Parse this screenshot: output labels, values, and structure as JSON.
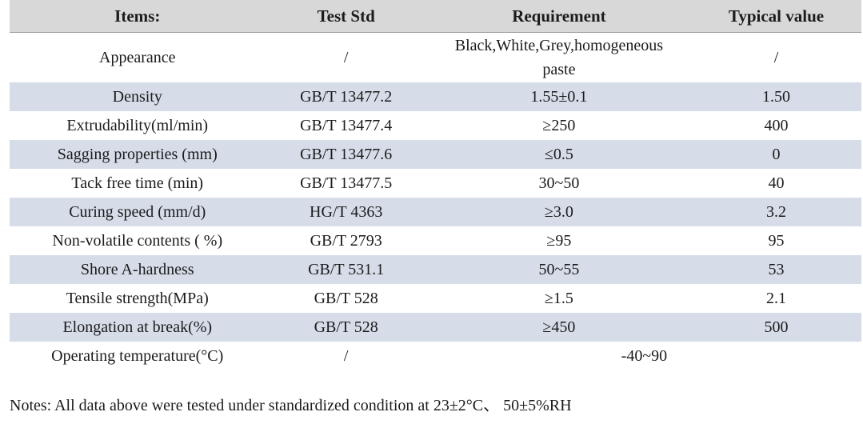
{
  "table": {
    "headers": [
      "Items:",
      "Test Std",
      "Requirement",
      "Typical value"
    ],
    "rows": [
      {
        "item": "Appearance",
        "test_std": "/",
        "requirement": "Black,White,Grey,homogeneous paste",
        "typical": "/"
      },
      {
        "item": "Density",
        "test_std": "GB/T 13477.2",
        "requirement": "1.55±0.1",
        "typical": "1.50"
      },
      {
        "item": "Extrudability(ml/min)",
        "test_std": "GB/T 13477.4",
        "requirement": "≥250",
        "typical": "400"
      },
      {
        "item": "Sagging properties (mm)",
        "test_std": "GB/T 13477.6",
        "requirement": "≤0.5",
        "typical": "0"
      },
      {
        "item": "Tack free time (min)",
        "test_std": "GB/T 13477.5",
        "requirement": "30~50",
        "typical": "40"
      },
      {
        "item": "Curing speed (mm/d)",
        "test_std": "HG/T 4363",
        "requirement": "≥3.0",
        "typical": "3.2"
      },
      {
        "item": "Non-volatile contents ( %)",
        "test_std": "GB/T 2793",
        "requirement": "≥95",
        "typical": "95"
      },
      {
        "item": "Shore A-hardness",
        "test_std": "GB/T 531.1",
        "requirement": "50~55",
        "typical": "53"
      },
      {
        "item": "Tensile strength(MPa)",
        "test_std": "GB/T 528",
        "requirement": "≥1.5",
        "typical": "2.1"
      },
      {
        "item": "Elongation at break(%)",
        "test_std": "GB/T 528",
        "requirement": "≥450",
        "typical": "500"
      },
      {
        "item": "Operating temperature(°C)",
        "test_std": "/",
        "requirement": "-40~90",
        "typical": null
      }
    ]
  },
  "notes": "Notes: All data above were tested under standardized condition at 23±2°C、 50±5%RH",
  "colors": {
    "header_bg": "#d8d8d8",
    "stripe_bg": "#d6dde9",
    "text_color": "#1b1b1b"
  }
}
